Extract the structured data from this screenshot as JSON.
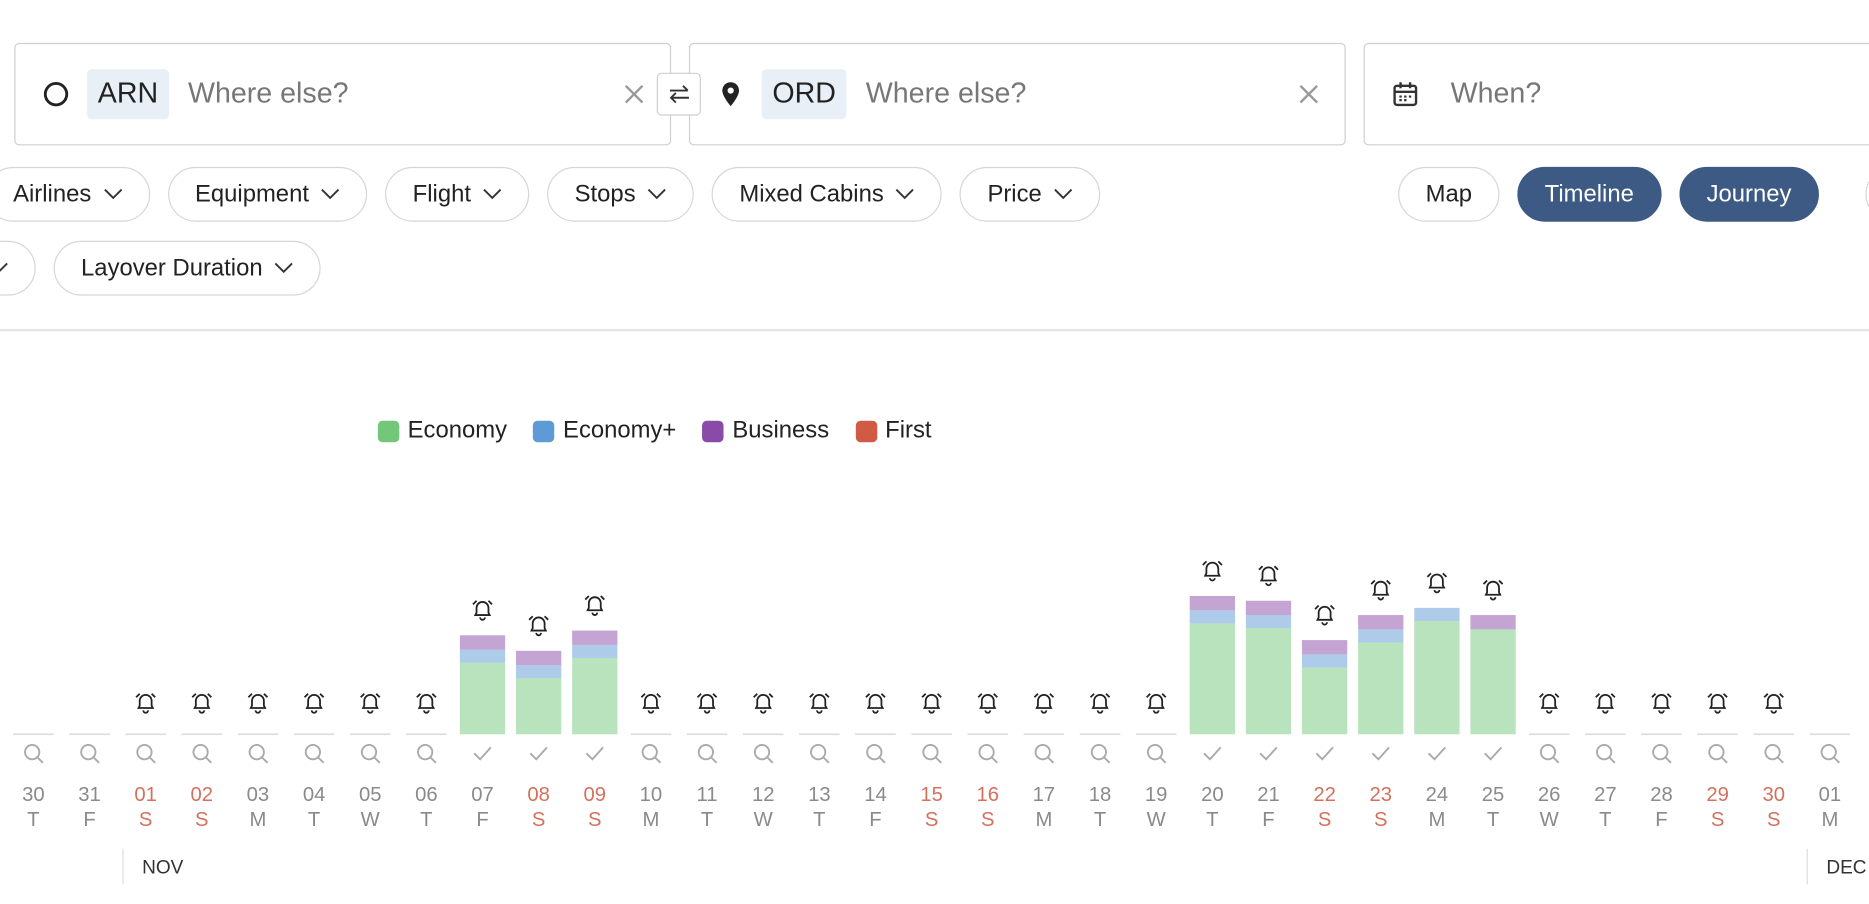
{
  "search": {
    "origin": {
      "code": "ARN",
      "placeholder": "Where else?"
    },
    "destination": {
      "code": "ORD",
      "placeholder": "Where else?"
    },
    "date_placeholder": "When?"
  },
  "filters": [
    "Airlines",
    "Equipment",
    "Flight",
    "Stops",
    "Mixed Cabins",
    "Price"
  ],
  "views": [
    {
      "label": "Map",
      "active": false
    },
    {
      "label": "Timeline",
      "active": true
    },
    {
      "label": "Journey",
      "active": true
    }
  ],
  "filters_row2": [
    "Layover Duration"
  ],
  "chart_data": {
    "type": "bar",
    "stacked": true,
    "ylim": [
      0,
      120
    ],
    "days": [
      {
        "date": "30",
        "weekday": "T",
        "weekend": false
      },
      {
        "date": "31",
        "weekday": "F",
        "weekend": false
      },
      {
        "date": "01",
        "weekday": "S",
        "weekend": true
      },
      {
        "date": "02",
        "weekday": "S",
        "weekend": true
      },
      {
        "date": "03",
        "weekday": "M",
        "weekend": false
      },
      {
        "date": "04",
        "weekday": "T",
        "weekend": false
      },
      {
        "date": "05",
        "weekday": "W",
        "weekend": false
      },
      {
        "date": "06",
        "weekday": "T",
        "weekend": false
      },
      {
        "date": "07",
        "weekday": "F",
        "weekend": false
      },
      {
        "date": "08",
        "weekday": "S",
        "weekend": true
      },
      {
        "date": "09",
        "weekday": "S",
        "weekend": true
      },
      {
        "date": "10",
        "weekday": "M",
        "weekend": false
      },
      {
        "date": "11",
        "weekday": "T",
        "weekend": false
      },
      {
        "date": "12",
        "weekday": "W",
        "weekend": false
      },
      {
        "date": "13",
        "weekday": "T",
        "weekend": false
      },
      {
        "date": "14",
        "weekday": "F",
        "weekend": false
      },
      {
        "date": "15",
        "weekday": "S",
        "weekend": true
      },
      {
        "date": "16",
        "weekday": "S",
        "weekend": true
      },
      {
        "date": "17",
        "weekday": "M",
        "weekend": false
      },
      {
        "date": "18",
        "weekday": "T",
        "weekend": false
      },
      {
        "date": "19",
        "weekday": "W",
        "weekend": false
      },
      {
        "date": "20",
        "weekday": "T",
        "weekend": false
      },
      {
        "date": "21",
        "weekday": "F",
        "weekend": false
      },
      {
        "date": "22",
        "weekday": "S",
        "weekend": true
      },
      {
        "date": "23",
        "weekday": "S",
        "weekend": true
      },
      {
        "date": "24",
        "weekday": "M",
        "weekend": false
      },
      {
        "date": "25",
        "weekday": "T",
        "weekend": false
      },
      {
        "date": "26",
        "weekday": "W",
        "weekend": false
      },
      {
        "date": "27",
        "weekday": "T",
        "weekend": false
      },
      {
        "date": "28",
        "weekday": "F",
        "weekend": false
      },
      {
        "date": "29",
        "weekday": "S",
        "weekend": true
      },
      {
        "date": "30",
        "weekday": "S",
        "weekend": true
      },
      {
        "date": "01",
        "weekday": "M",
        "weekend": false
      }
    ],
    "months": [
      {
        "label": "NOV",
        "start": 2
      },
      {
        "label": "DEC",
        "start": 32
      }
    ],
    "label_color": "#8a8a8a",
    "weekend_color": "#d4715d",
    "series": [
      {
        "name": "Economy",
        "color": "#72c77a",
        "values": [
          null,
          null,
          null,
          null,
          null,
          null,
          null,
          null,
          60,
          47,
          64,
          null,
          null,
          null,
          null,
          null,
          null,
          null,
          null,
          null,
          null,
          93,
          89,
          56,
          77,
          95,
          88,
          null,
          null,
          null,
          null,
          null,
          null
        ]
      },
      {
        "name": "Economy+",
        "color": "#5e9ad6",
        "values": [
          null,
          null,
          null,
          null,
          null,
          null,
          null,
          null,
          11,
          11,
          11,
          null,
          null,
          null,
          null,
          null,
          null,
          null,
          null,
          null,
          null,
          11,
          11,
          11,
          11,
          11,
          0,
          null,
          null,
          null,
          null,
          null,
          null
        ]
      },
      {
        "name": "Business",
        "color": "#8a4aa8",
        "values": [
          null,
          null,
          null,
          null,
          null,
          null,
          null,
          null,
          12,
          12,
          12,
          null,
          null,
          null,
          null,
          null,
          null,
          null,
          null,
          null,
          null,
          12,
          12,
          12,
          12,
          0,
          12,
          null,
          null,
          null,
          null,
          null,
          null
        ]
      },
      {
        "name": "First",
        "color": "#d05b45",
        "values": [
          null,
          null,
          null,
          null,
          null,
          null,
          null,
          null,
          0,
          0,
          0,
          null,
          null,
          null,
          null,
          null,
          null,
          null,
          null,
          null,
          null,
          0,
          0,
          0,
          0,
          0,
          0,
          null,
          null,
          null,
          null,
          null,
          null
        ]
      }
    ]
  }
}
